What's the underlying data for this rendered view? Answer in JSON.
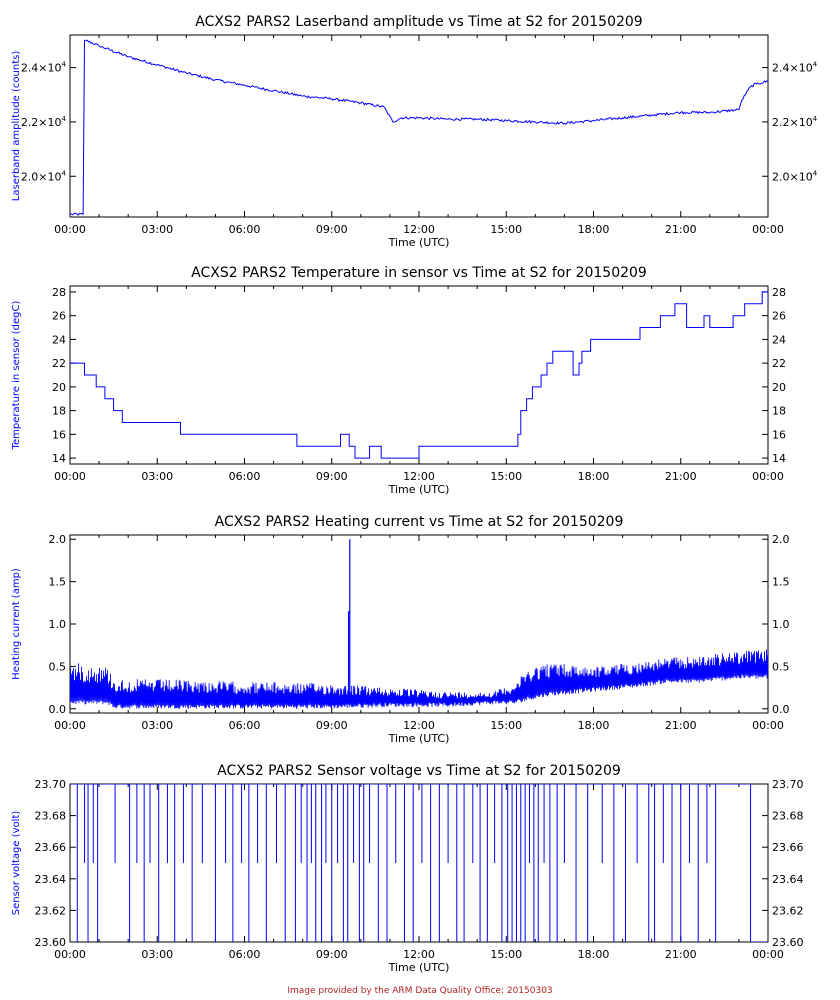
{
  "footer": "Image provided by the ARM Data Quality Office: 20150303",
  "colors": {
    "series": "#0000ff",
    "axes": "#000000",
    "footer": "#b22222"
  },
  "chart_data": [
    {
      "type": "line",
      "title": "ACXS2 PARS2 Laserband amplitude vs Time at S2 for 20150209",
      "xlabel": "Time (UTC)",
      "ylabel": "Laserband amplitude (counts)",
      "xlim": [
        0,
        24
      ],
      "ylim": [
        18500,
        25200
      ],
      "x_ticks": [
        "00:00",
        "03:00",
        "06:00",
        "09:00",
        "12:00",
        "15:00",
        "18:00",
        "21:00",
        "00:00"
      ],
      "y_ticks": [
        {
          "value": 20000,
          "mantissa": "2.0",
          "base": "×10",
          "exp": "4"
        },
        {
          "value": 22000,
          "mantissa": "2.2",
          "base": "×10",
          "exp": "4"
        },
        {
          "value": 24000,
          "mantissa": "2.4",
          "base": "×10",
          "exp": "4"
        }
      ],
      "series": [
        {
          "name": "Laserband amplitude",
          "x": [
            0,
            0.45,
            0.5,
            0.55,
            1.0,
            2.0,
            3.0,
            4.0,
            5.0,
            6.0,
            7.0,
            8.0,
            9.0,
            10.0,
            10.8,
            11.1,
            11.4,
            12.0,
            13.0,
            14.0,
            15.0,
            16.0,
            17.0,
            18.0,
            19.0,
            20.0,
            21.0,
            22.0,
            23.0,
            23.1,
            23.4,
            23.6,
            24.0
          ],
          "y": [
            18600,
            18600,
            25000,
            25000,
            24800,
            24400,
            24100,
            23800,
            23550,
            23350,
            23150,
            22950,
            22850,
            22700,
            22550,
            22000,
            22150,
            22150,
            22100,
            22100,
            22050,
            22000,
            21950,
            22050,
            22150,
            22250,
            22350,
            22350,
            22450,
            22800,
            23300,
            23400,
            23500
          ]
        }
      ]
    },
    {
      "type": "line",
      "title": "ACXS2 PARS2 Temperature in sensor vs Time at S2 for 20150209",
      "xlabel": "Time (UTC)",
      "ylabel": "Temperature in sensor (degC)",
      "xlim": [
        0,
        24
      ],
      "ylim": [
        13.5,
        28.5
      ],
      "x_ticks": [
        "00:00",
        "03:00",
        "06:00",
        "09:00",
        "12:00",
        "15:00",
        "18:00",
        "21:00",
        "00:00"
      ],
      "y_ticks": [
        {
          "value": 14,
          "label": "14"
        },
        {
          "value": 16,
          "label": "16"
        },
        {
          "value": 18,
          "label": "18"
        },
        {
          "value": 20,
          "label": "20"
        },
        {
          "value": 22,
          "label": "22"
        },
        {
          "value": 24,
          "label": "24"
        },
        {
          "value": 26,
          "label": "26"
        },
        {
          "value": 28,
          "label": "28"
        }
      ],
      "series": [
        {
          "name": "Temperature in sensor",
          "step": true,
          "x": [
            0,
            0.5,
            0.9,
            1.2,
            1.5,
            1.8,
            3.8,
            7.8,
            9.3,
            9.6,
            9.8,
            10.3,
            10.7,
            12.0,
            15.4,
            15.5,
            15.7,
            15.9,
            16.2,
            16.4,
            16.6,
            16.8,
            17.3,
            17.5,
            17.6,
            17.9,
            18.2,
            19.6,
            20.3,
            20.8,
            21.2,
            21.8,
            22.0,
            22.8,
            23.2,
            23.8,
            24.0
          ],
          "y": [
            22,
            21,
            20,
            19,
            18,
            17,
            16,
            15,
            16,
            15,
            14,
            15,
            14,
            15,
            16,
            18,
            19,
            20,
            21,
            22,
            23,
            23,
            21,
            22,
            23,
            24,
            24,
            25,
            26,
            27,
            25,
            26,
            25,
            26,
            27,
            28,
            27
          ]
        }
      ]
    },
    {
      "type": "line",
      "title": "ACXS2 PARS2 Heating current vs Time at S2 for 20150209",
      "xlabel": "Time (UTC)",
      "ylabel": "Heating current (amp)",
      "xlim": [
        0,
        24
      ],
      "ylim": [
        -0.05,
        2.05
      ],
      "x_ticks": [
        "00:00",
        "03:00",
        "06:00",
        "09:00",
        "12:00",
        "15:00",
        "18:00",
        "21:00",
        "00:00"
      ],
      "y_ticks": [
        {
          "value": 0.0,
          "label": "0.0"
        },
        {
          "value": 0.5,
          "label": "0.5"
        },
        {
          "value": 1.0,
          "label": "1.0"
        },
        {
          "value": 1.5,
          "label": "1.5"
        },
        {
          "value": 2.0,
          "label": "2.0"
        }
      ],
      "series": [
        {
          "name": "Heating current",
          "oscillating": true,
          "envelope_x": [
            0,
            1.3,
            1.5,
            3.0,
            6.0,
            9.0,
            11.0,
            13.0,
            14.5,
            15.3,
            15.8,
            16.5,
            18.0,
            19.5,
            20.5,
            21.5,
            23.0,
            24.0
          ],
          "envelope_low": [
            0.05,
            0.05,
            0.0,
            0.0,
            0.0,
            0.0,
            0.02,
            0.02,
            0.05,
            0.05,
            0.1,
            0.15,
            0.2,
            0.25,
            0.3,
            0.3,
            0.35,
            0.35
          ],
          "envelope_high": [
            0.55,
            0.5,
            0.35,
            0.35,
            0.32,
            0.3,
            0.25,
            0.2,
            0.2,
            0.3,
            0.5,
            0.55,
            0.5,
            0.55,
            0.6,
            0.62,
            0.68,
            0.7
          ],
          "spikes": [
            {
              "x": 9.62,
              "y": 2.0
            },
            {
              "x": 9.58,
              "y": 1.15
            }
          ]
        }
      ]
    },
    {
      "type": "line",
      "title": "ACXS2 PARS2 Sensor voltage vs Time at S2 for 20150209",
      "xlabel": "Time (UTC)",
      "ylabel": "Sensor voltage (volt)",
      "xlim": [
        0,
        24
      ],
      "ylim": [
        23.6,
        23.7
      ],
      "x_ticks": [
        "00:00",
        "03:00",
        "06:00",
        "09:00",
        "12:00",
        "15:00",
        "18:00",
        "21:00",
        "00:00"
      ],
      "y_ticks": [
        {
          "value": 23.6,
          "label": "23.60"
        },
        {
          "value": 23.62,
          "label": "23.62"
        },
        {
          "value": 23.64,
          "label": "23.64"
        },
        {
          "value": 23.66,
          "label": "23.66"
        },
        {
          "value": 23.68,
          "label": "23.68"
        },
        {
          "value": 23.7,
          "label": "23.70"
        }
      ],
      "series": [
        {
          "name": "Sensor voltage",
          "baseline": 23.7,
          "dips": [
            [
              0.25,
              23.6
            ],
            [
              0.5,
              23.65
            ],
            [
              0.62,
              23.6
            ],
            [
              0.8,
              23.65
            ],
            [
              0.95,
              23.6
            ],
            [
              1.55,
              23.65
            ],
            [
              2.05,
              23.6
            ],
            [
              2.3,
              23.65
            ],
            [
              2.55,
              23.6
            ],
            [
              2.75,
              23.65
            ],
            [
              3.05,
              23.6
            ],
            [
              3.35,
              23.65
            ],
            [
              3.6,
              23.6
            ],
            [
              3.9,
              23.65
            ],
            [
              4.2,
              23.6
            ],
            [
              4.55,
              23.65
            ],
            [
              5.0,
              23.6
            ],
            [
              5.35,
              23.65
            ],
            [
              5.6,
              23.6
            ],
            [
              5.9,
              23.65
            ],
            [
              6.15,
              23.6
            ],
            [
              6.45,
              23.65
            ],
            [
              6.75,
              23.6
            ],
            [
              7.1,
              23.65
            ],
            [
              7.4,
              23.6
            ],
            [
              7.75,
              23.6
            ],
            [
              7.95,
              23.65
            ],
            [
              8.15,
              23.6
            ],
            [
              8.3,
              23.65
            ],
            [
              8.45,
              23.6
            ],
            [
              8.65,
              23.6
            ],
            [
              8.8,
              23.65
            ],
            [
              9.0,
              23.6
            ],
            [
              9.2,
              23.65
            ],
            [
              9.4,
              23.6
            ],
            [
              9.55,
              23.6
            ],
            [
              9.75,
              23.65
            ],
            [
              9.95,
              23.6
            ],
            [
              10.1,
              23.6
            ],
            [
              10.3,
              23.65
            ],
            [
              10.6,
              23.6
            ],
            [
              10.9,
              23.6
            ],
            [
              11.2,
              23.65
            ],
            [
              11.5,
              23.6
            ],
            [
              11.8,
              23.6
            ],
            [
              12.1,
              23.65
            ],
            [
              12.4,
              23.6
            ],
            [
              12.7,
              23.6
            ],
            [
              13.0,
              23.65
            ],
            [
              13.3,
              23.6
            ],
            [
              13.55,
              23.6
            ],
            [
              13.85,
              23.65
            ],
            [
              14.1,
              23.6
            ],
            [
              14.35,
              23.6
            ],
            [
              14.6,
              23.65
            ],
            [
              14.85,
              23.6
            ],
            [
              15.05,
              23.6
            ],
            [
              15.2,
              23.6
            ],
            [
              15.35,
              23.6
            ],
            [
              15.5,
              23.6
            ],
            [
              15.65,
              23.6
            ],
            [
              15.8,
              23.65
            ],
            [
              15.95,
              23.6
            ],
            [
              16.1,
              23.6
            ],
            [
              16.3,
              23.65
            ],
            [
              16.5,
              23.6
            ],
            [
              16.75,
              23.6
            ],
            [
              17.0,
              23.65
            ],
            [
              17.4,
              23.6
            ],
            [
              17.8,
              23.6
            ],
            [
              18.3,
              23.65
            ],
            [
              18.7,
              23.6
            ],
            [
              19.1,
              23.6
            ],
            [
              19.5,
              23.65
            ],
            [
              19.9,
              23.6
            ],
            [
              20.1,
              23.6
            ],
            [
              20.4,
              23.65
            ],
            [
              20.7,
              23.6
            ],
            [
              21.0,
              23.6
            ],
            [
              21.3,
              23.65
            ],
            [
              21.6,
              23.6
            ],
            [
              21.9,
              23.65
            ],
            [
              22.2,
              23.6
            ]
          ],
          "low_segment": {
            "x_start": 23.4,
            "x_end": 24.0,
            "y": 23.6
          }
        }
      ]
    }
  ]
}
